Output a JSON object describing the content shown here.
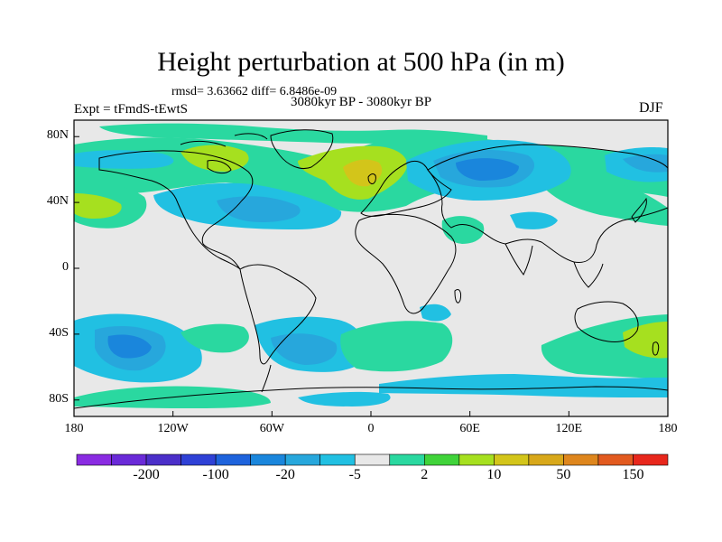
{
  "title": "Height perturbation at 500 hPa (in m)",
  "stats": "rmsd= 3.63662 diff= 6.8486e-09",
  "period": "3080kyr BP - 3080kyr BP",
  "experiment": "Expt = tFmdS-tEwtS",
  "season": "DJF",
  "lat_ticks": [
    {
      "label": "80N",
      "lat": 80
    },
    {
      "label": "40N",
      "lat": 40
    },
    {
      "label": "0",
      "lat": 0
    },
    {
      "label": "40S",
      "lat": -40
    },
    {
      "label": "80S",
      "lat": -80
    }
  ],
  "lon_ticks": [
    {
      "label": "180",
      "lon": -180
    },
    {
      "label": "120W",
      "lon": -120
    },
    {
      "label": "60W",
      "lon": -60
    },
    {
      "label": "0",
      "lon": 0
    },
    {
      "label": "60E",
      "lon": 60
    },
    {
      "label": "120E",
      "lon": 120
    },
    {
      "label": "180",
      "lon": 180
    }
  ],
  "colorbar": {
    "colors": [
      "#8a2be2",
      "#6a2ad8",
      "#4b2fc9",
      "#2f41d6",
      "#1e63dc",
      "#1a86dc",
      "#27a7dc",
      "#21c0e2",
      "#e8e8e8",
      "#2ad8a0",
      "#40d33a",
      "#a6e01f",
      "#d3c51a",
      "#d8a81a",
      "#de861d",
      "#e25a1f",
      "#e8271c"
    ],
    "labels": [
      {
        "text": "-200",
        "after": 2
      },
      {
        "text": "-100",
        "after": 4
      },
      {
        "text": "-20",
        "after": 6
      },
      {
        "text": "-5",
        "after": 8
      },
      {
        "text": "2",
        "after": 10
      },
      {
        "text": "10",
        "after": 12
      },
      {
        "text": "50",
        "after": 14
      },
      {
        "text": "150",
        "after": 16
      }
    ]
  },
  "colors": {
    "neutral": "#e8e8e8",
    "blue_light": "#21c0e2",
    "blue_mid": "#27a7dc",
    "blue_deep": "#1a86dc",
    "green": "#2ad8a0",
    "lime": "#a6e01f",
    "yellow": "#d3c51a"
  }
}
